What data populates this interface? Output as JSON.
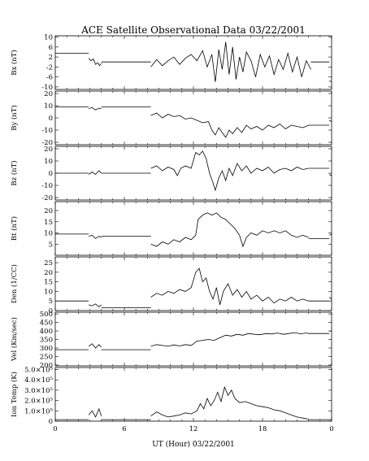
{
  "chart_data": {
    "type": "line",
    "title": "ACE Satellite Observational Data   03/22/2001",
    "xlabel": "UT (Hour)   03/22/2001",
    "xlim": [
      0,
      24
    ],
    "xticks": [
      "0",
      "6",
      "12",
      "18",
      "0"
    ],
    "xtick_values": [
      0,
      6,
      12,
      18,
      24
    ],
    "grid": false,
    "panels": [
      {
        "ylabel": "Bx (nT)",
        "ylim": [
          -11,
          10.5
        ],
        "yticks": [
          "10",
          "6",
          "2",
          "-2",
          "-6",
          "-10"
        ],
        "ytick_values": [
          10,
          6,
          2,
          -2,
          -6,
          -10
        ],
        "series": [
          {
            "x": [
              0,
              2.9
            ],
            "y": [
              3.5,
              3.5
            ]
          },
          {
            "x": [
              2.9,
              3.1,
              3.3,
              3.5,
              3.7,
              3.85,
              4.0
            ],
            "y": [
              1.5,
              0.5,
              1.2,
              -1.0,
              -0.3,
              -1.5,
              -0.5
            ]
          },
          {
            "x": [
              4.0,
              8.3
            ],
            "y": [
              0,
              0
            ]
          },
          {
            "x": [
              8.3,
              8.8,
              9.3,
              9.8,
              10.3,
              10.8,
              11.3,
              11.8,
              12.3,
              12.8,
              13.2,
              13.6,
              13.9,
              14.2,
              14.5,
              14.8,
              15.1,
              15.4,
              15.7,
              16.0,
              16.3,
              16.6,
              17.0,
              17.4,
              17.8,
              18.2,
              18.6,
              19.0,
              19.4,
              19.8,
              20.2,
              20.6,
              21.0,
              21.4,
              21.8,
              22.2
            ],
            "y": [
              -2,
              1.0,
              -1.5,
              0.5,
              2.0,
              -1.0,
              1.5,
              3.0,
              0.5,
              4.5,
              -2.0,
              3.0,
              -8.0,
              5.0,
              -3.0,
              8.0,
              -5.0,
              6.0,
              -7.0,
              2.0,
              -4.0,
              4.0,
              0.5,
              -6.0,
              3.0,
              -2.0,
              2.5,
              -5.0,
              1.0,
              -3.0,
              3.5,
              -4.0,
              2.0,
              -6.0,
              0.5,
              -3.0
            ]
          },
          {
            "x": [
              22.2,
              23.8
            ],
            "y": [
              0,
              0
            ]
          },
          {
            "x": [
              23.8,
              24.0
            ],
            "y": [
              -7.5,
              -8
            ]
          }
        ]
      },
      {
        "ylabel": "By (nT)",
        "ylim": [
          -22,
          22
        ],
        "yticks": [
          "20",
          "10",
          "0",
          "-10",
          "-20"
        ],
        "ytick_values": [
          20,
          10,
          0,
          -10,
          -20
        ],
        "series": [
          {
            "x": [
              0,
              2.9
            ],
            "y": [
              9,
              9
            ]
          },
          {
            "x": [
              2.9,
              3.2,
              3.5,
              3.8,
              4.0
            ],
            "y": [
              7.5,
              8.5,
              6.5,
              8.0,
              7.5
            ]
          },
          {
            "x": [
              4.0,
              8.3
            ],
            "y": [
              9,
              9
            ]
          },
          {
            "x": [
              8.3,
              8.8,
              9.3,
              9.8,
              10.3,
              10.8,
              11.3,
              11.8,
              12.3,
              12.8,
              13.3,
              13.6,
              13.9,
              14.2,
              14.5,
              14.8,
              15.1,
              15.4,
              15.8,
              16.2,
              16.6,
              17.0,
              17.5,
              18.0,
              18.5,
              19.0,
              19.5,
              20.0,
              20.5,
              21.0,
              21.5,
              22.0
            ],
            "y": [
              2,
              4,
              0,
              3,
              1,
              2,
              -1,
              0,
              -2,
              -4,
              -3,
              -10,
              -14,
              -8,
              -12,
              -16,
              -10,
              -13,
              -8,
              -12,
              -6,
              -9,
              -7,
              -10,
              -6,
              -8,
              -5,
              -9,
              -6,
              -7,
              -8,
              -6
            ]
          },
          {
            "x": [
              22.0,
              23.8
            ],
            "y": [
              -6,
              -6
            ]
          },
          {
            "x": [
              23.8,
              24.0
            ],
            "y": [
              -2,
              -3
            ]
          }
        ]
      },
      {
        "ylabel": "Bz (nT)",
        "ylim": [
          -22,
          22
        ],
        "yticks": [
          "20",
          "10",
          "0",
          "-10",
          "-20"
        ],
        "ytick_values": [
          20,
          10,
          0,
          -10,
          -20
        ],
        "series": [
          {
            "x": [
              0,
              2.9
            ],
            "y": [
              0,
              0
            ]
          },
          {
            "x": [
              2.9,
              3.2,
              3.5,
              3.8,
              4.0
            ],
            "y": [
              -1,
              1,
              -1,
              2,
              0
            ]
          },
          {
            "x": [
              4.0,
              8.3
            ],
            "y": [
              0,
              0
            ]
          },
          {
            "x": [
              8.3,
              8.8,
              9.3,
              9.8,
              10.3,
              10.6,
              10.9,
              11.3,
              11.8,
              12.2,
              12.5,
              12.8,
              13.1,
              13.4,
              13.7,
              13.9,
              14.2,
              14.5,
              14.8,
              15.1,
              15.4,
              15.8,
              16.2,
              16.6,
              17.0,
              17.5,
              18.0,
              18.5,
              19.0,
              19.5,
              20.0,
              20.5,
              21.0,
              21.5,
              22.0
            ],
            "y": [
              4,
              6,
              2,
              5,
              3,
              -2,
              4,
              6,
              4,
              17,
              15,
              18,
              12,
              0,
              -8,
              -14,
              -4,
              2,
              -6,
              4,
              -2,
              8,
              2,
              6,
              0,
              4,
              2,
              5,
              0,
              3,
              4,
              2,
              5,
              3,
              4
            ]
          },
          {
            "x": [
              22.0,
              23.8
            ],
            "y": [
              4,
              4
            ]
          },
          {
            "x": [
              23.8,
              24.0
            ],
            "y": [
              -1,
              -2
            ]
          }
        ]
      },
      {
        "ylabel": "Bt (nT)",
        "ylim": [
          0,
          24
        ],
        "yticks": [
          "20",
          "15",
          "10",
          "5"
        ],
        "ytick_values": [
          20,
          15,
          10,
          5
        ],
        "series": [
          {
            "x": [
              0,
              2.9
            ],
            "y": [
              9.5,
              9.5
            ]
          },
          {
            "x": [
              2.9,
              3.2,
              3.5,
              3.8,
              4.0
            ],
            "y": [
              8.5,
              9.0,
              7.5,
              8.5,
              8.0
            ]
          },
          {
            "x": [
              4.0,
              8.3
            ],
            "y": [
              8.5,
              8.5
            ]
          },
          {
            "x": [
              8.3,
              8.8,
              9.3,
              9.8,
              10.3,
              10.8,
              11.3,
              11.8,
              12.2,
              12.4,
              12.8,
              13.2,
              13.6,
              14.0,
              14.4,
              14.8,
              15.2,
              15.6,
              16.0,
              16.3,
              16.6,
              17.0,
              17.5,
              18.0,
              18.5,
              19.0,
              19.5,
              20.0,
              20.5,
              21.0,
              21.5,
              22.0
            ],
            "y": [
              5,
              4,
              6,
              5,
              7,
              6,
              8,
              7,
              9,
              16,
              18,
              19,
              18,
              19,
              17,
              16,
              14,
              12,
              9,
              4,
              8,
              10,
              9,
              11,
              10,
              11,
              10,
              11,
              9,
              8,
              9,
              8
            ]
          },
          {
            "x": [
              22.0,
              23.8
            ],
            "y": [
              7.5,
              7.5
            ]
          },
          {
            "x": [
              23.8,
              24.0
            ],
            "y": [
              9.0,
              9.5
            ]
          }
        ]
      },
      {
        "ylabel": "Den (1/CC)",
        "ylim": [
          0,
          28
        ],
        "yticks": [
          "25",
          "20",
          "15",
          "10",
          "5",
          "0"
        ],
        "ytick_values": [
          25,
          20,
          15,
          10,
          5,
          0
        ],
        "series": [
          {
            "x": [
              0,
              2.9
            ],
            "y": [
              5,
              5
            ]
          },
          {
            "x": [
              2.9,
              3.2,
              3.5,
              3.8,
              4.0
            ],
            "y": [
              3,
              2.5,
              3.5,
              2.0,
              3.0
            ]
          },
          {
            "x": [
              4.0,
              8.3
            ],
            "y": [
              1.5,
              1.5
            ]
          },
          {
            "x": [
              8.3,
              8.8,
              9.3,
              9.8,
              10.3,
              10.8,
              11.3,
              11.8,
              12.2,
              12.5,
              12.8,
              13.1,
              13.4,
              13.7,
              14.0,
              14.3,
              14.6,
              15.0,
              15.4,
              15.8,
              16.2,
              16.6,
              17.0,
              17.5,
              18.0,
              18.5,
              19.0,
              19.5,
              20.0,
              20.5,
              21.0,
              21.5,
              22.0
            ],
            "y": [
              7,
              9,
              8,
              10,
              9,
              11,
              10,
              12,
              20,
              22,
              15,
              17,
              10,
              6,
              12,
              3,
              10,
              14,
              8,
              11,
              7,
              10,
              6,
              8,
              5,
              7,
              4,
              6,
              5,
              7,
              5,
              6,
              5
            ]
          },
          {
            "x": [
              22.0,
              23.8
            ],
            "y": [
              5,
              5
            ]
          },
          {
            "x": [
              23.8,
              24.0
            ],
            "y": [
              7,
              6
            ]
          }
        ]
      },
      {
        "ylabel": "Vel (Km/sec)",
        "ylim": [
          195,
          510
        ],
        "yticks": [
          "500",
          "450",
          "400",
          "350",
          "300",
          "250",
          "200"
        ],
        "ytick_values": [
          500,
          450,
          400,
          350,
          300,
          250,
          200
        ],
        "series": [
          {
            "x": [
              0,
              2.9
            ],
            "y": [
              290,
              290
            ]
          },
          {
            "x": [
              2.9,
              3.2,
              3.5,
              3.8,
              4.0
            ],
            "y": [
              310,
              325,
              300,
              320,
              305
            ]
          },
          {
            "x": [
              4.0,
              8.3
            ],
            "y": [
              290,
              290
            ]
          },
          {
            "x": [
              8.3,
              8.8,
              9.3,
              9.8,
              10.3,
              10.8,
              11.3,
              11.8,
              12.3,
              12.8,
              13.3,
              13.8,
              14.3,
              14.8,
              15.3,
              15.8,
              16.3,
              16.8,
              17.3,
              17.8,
              18.3,
              18.8,
              19.3,
              19.8,
              20.3,
              20.8,
              21.3,
              21.8,
              22.0
            ],
            "y": [
              310,
              320,
              315,
              310,
              318,
              312,
              320,
              315,
              340,
              345,
              350,
              345,
              360,
              375,
              370,
              380,
              375,
              385,
              380,
              378,
              385,
              382,
              388,
              380,
              385,
              390,
              383,
              388,
              385
            ]
          },
          {
            "x": [
              22.0,
              23.8
            ],
            "y": [
              385,
              385
            ]
          },
          {
            "x": [
              23.8,
              24.0
            ],
            "y": [
              400,
              398
            ]
          }
        ]
      },
      {
        "ylabel": "Ion Temp (K)",
        "ylim": [
          0,
          520000
        ],
        "yticks": [
          "5.0×10⁵",
          "4.0×10⁵",
          "3.0×10⁵",
          "2.0×10⁵",
          "1.0×10⁵",
          "0"
        ],
        "ytick_values": [
          500000,
          400000,
          300000,
          200000,
          100000,
          0
        ],
        "series": [
          {
            "x": [
              0,
              2.9
            ],
            "y": [
              15000,
              15000
            ]
          },
          {
            "x": [
              2.9,
              3.2,
              3.5,
              3.8,
              4.0
            ],
            "y": [
              60000,
              100000,
              40000,
              120000,
              50000
            ]
          },
          {
            "x": [
              4.0,
              8.3
            ],
            "y": [
              15000,
              15000
            ]
          },
          {
            "x": [
              8.3,
              8.8,
              9.3,
              9.8,
              10.3,
              10.8,
              11.3,
              11.8,
              12.3,
              12.6,
              12.9,
              13.2,
              13.5,
              13.8,
              14.1,
              14.4,
              14.7,
              15.0,
              15.3,
              15.6,
              16.0,
              16.5,
              17.0,
              17.5,
              18.0,
              18.5,
              19.0,
              19.5,
              20.0,
              20.5,
              21.0,
              21.5,
              22.0
            ],
            "y": [
              50000,
              90000,
              60000,
              40000,
              50000,
              60000,
              80000,
              70000,
              100000,
              170000,
              120000,
              220000,
              150000,
              200000,
              280000,
              190000,
              330000,
              250000,
              300000,
              220000,
              180000,
              190000,
              170000,
              150000,
              140000,
              130000,
              110000,
              100000,
              80000,
              60000,
              40000,
              30000,
              20000
            ]
          },
          {
            "x": [
              22.0,
              23.8
            ],
            "y": [
              15000,
              15000
            ]
          },
          {
            "x": [
              23.8,
              24.0
            ],
            "y": [
              15000,
              15000
            ]
          }
        ]
      }
    ]
  }
}
